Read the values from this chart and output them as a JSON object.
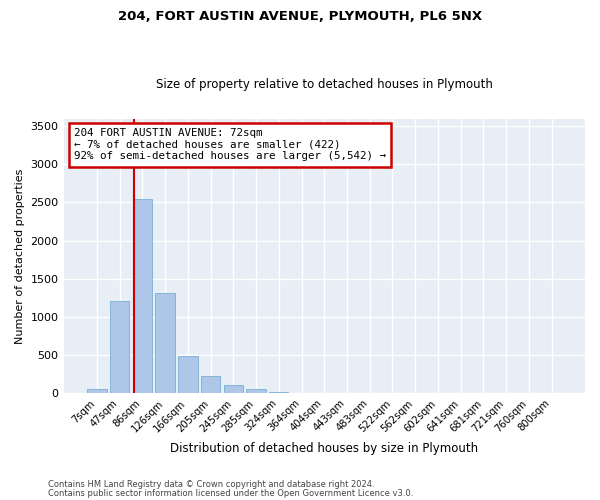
{
  "title1": "204, FORT AUSTIN AVENUE, PLYMOUTH, PL6 5NX",
  "title2": "Size of property relative to detached houses in Plymouth",
  "xlabel": "Distribution of detached houses by size in Plymouth",
  "ylabel": "Number of detached properties",
  "bar_labels": [
    "7sqm",
    "47sqm",
    "86sqm",
    "126sqm",
    "166sqm",
    "205sqm",
    "245sqm",
    "285sqm",
    "324sqm",
    "364sqm",
    "404sqm",
    "443sqm",
    "483sqm",
    "522sqm",
    "562sqm",
    "602sqm",
    "641sqm",
    "681sqm",
    "721sqm",
    "760sqm",
    "800sqm"
  ],
  "bar_values": [
    50,
    1210,
    2550,
    1310,
    490,
    225,
    110,
    50,
    20,
    5,
    2,
    1,
    0,
    0,
    0,
    0,
    0,
    0,
    0,
    0,
    0
  ],
  "bar_color": "#aec6e8",
  "bar_edge_color": "#7aafd4",
  "property_line_x": 1.65,
  "annotation_line1": "204 FORT AUSTIN AVENUE: 72sqm",
  "annotation_line2": "← 7% of detached houses are smaller (422)",
  "annotation_line3": "92% of semi-detached houses are larger (5,542) →",
  "annotation_box_color": "#ffffff",
  "annotation_box_edge_color": "#cc0000",
  "ylim": [
    0,
    3600
  ],
  "yticks": [
    0,
    500,
    1000,
    1500,
    2000,
    2500,
    3000,
    3500
  ],
  "bg_color": "#e8eef6",
  "grid_color": "#ffffff",
  "fig_bg_color": "#ffffff",
  "footer1": "Contains HM Land Registry data © Crown copyright and database right 2024.",
  "footer2": "Contains public sector information licensed under the Open Government Licence v3.0."
}
